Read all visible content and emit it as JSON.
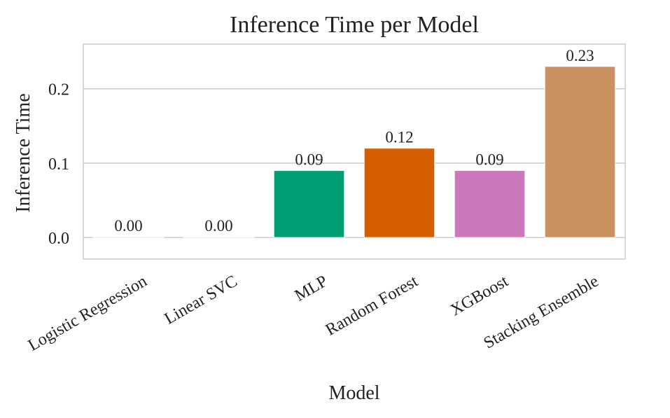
{
  "chart_data": {
    "type": "bar",
    "title": "Inference Time per Model",
    "xlabel": "Model",
    "ylabel": "Inference Time",
    "categories": [
      "Logistic Regression",
      "Linear SVC",
      "MLP",
      "Random Forest",
      "XGBoost",
      "Stacking Ensemble"
    ],
    "values": [
      0.001,
      0.001,
      0.09,
      0.12,
      0.09,
      0.23
    ],
    "value_labels": [
      "0.00",
      "0.00",
      "0.09",
      "0.12",
      "0.09",
      "0.23"
    ],
    "colors": [
      "#0173b2",
      "#de8f05",
      "#029e73",
      "#d55e00",
      "#cc78bc",
      "#ca9161"
    ],
    "ylim": [
      -0.029,
      0.26
    ],
    "yticks": [
      0.0,
      0.1,
      0.2
    ],
    "ytick_labels": [
      "0.0",
      "0.1",
      "0.2"
    ],
    "grid": true,
    "grid_color": "#cccccc",
    "xtick_rotation_deg": -30
  }
}
